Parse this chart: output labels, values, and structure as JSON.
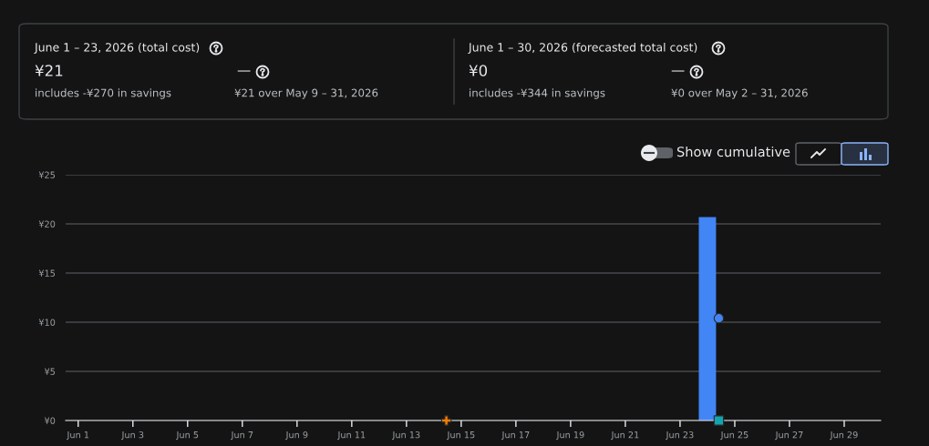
{
  "chart_data": {
    "type": "bar",
    "annotations": [
      "June 1 – 23, 2026 (total cost)",
      "¥21",
      "—",
      "includes -¥270 in savings",
      "¥21 over May 9 – 31, 2026",
      "June 1 – 30, 2026 (forecasted total cost)",
      "¥0",
      "—",
      "includes -¥344 in savings",
      "¥0 over May 2 – 31, 2026",
      "Show cumulative"
    ],
    "series": [
      {
        "color": "#4285f4",
        "x": [
          "2026-06-24"
        ],
        "values": [
          20.7
        ]
      },
      {
        "type": "scatter",
        "marker": "circle",
        "color": "#4285f4",
        "x": [
          "2026-06-24T10:00"
        ],
        "values": [
          10.4
        ]
      },
      {
        "type": "scatter",
        "marker": "square",
        "color": "#12a4af",
        "x": [
          "2026-06-24T10:00"
        ],
        "values": [
          0
        ]
      },
      {
        "type": "scatter",
        "marker": "cross",
        "color": "#f57c00",
        "x": [
          "2026-06-14T11:00"
        ],
        "values": [
          0
        ]
      }
    ],
    "xlim": [
      "2026-05-31T13:00",
      "2026-06-30T08:00"
    ],
    "xticks": [
      {
        "value": "2026-06-01",
        "label": "Jun 1"
      },
      {
        "value": "2026-06-03",
        "label": "Jun 3"
      },
      {
        "value": "2026-06-05",
        "label": "Jun 5"
      },
      {
        "value": "2026-06-07",
        "label": "Jun 7"
      },
      {
        "value": "2026-06-09",
        "label": "Jun 9"
      },
      {
        "value": "2026-06-11",
        "label": "Jun 11"
      },
      {
        "value": "2026-06-13",
        "label": "Jun 13"
      },
      {
        "value": "2026-06-15",
        "label": "Jun 15"
      },
      {
        "value": "2026-06-17",
        "label": "Jun 17"
      },
      {
        "value": "2026-06-19",
        "label": "Jun 19"
      },
      {
        "value": "2026-06-21",
        "label": "Jun 21"
      },
      {
        "value": "2026-06-23",
        "label": "Jun 23"
      },
      {
        "value": "2026-06-25",
        "label": "Jun 25"
      },
      {
        "value": "2026-06-27",
        "label": "Jun 27"
      },
      {
        "value": "2026-06-29",
        "label": "Jun 29"
      }
    ],
    "ylim": [
      0,
      25
    ],
    "yticks": [
      {
        "value": 0,
        "label": "¥0"
      },
      {
        "value": 5,
        "label": "¥5"
      },
      {
        "value": 10,
        "label": "¥10"
      },
      {
        "value": 15,
        "label": "¥15"
      },
      {
        "value": 20,
        "label": "¥20"
      },
      {
        "value": 25,
        "label": "¥25"
      }
    ],
    "grid": "y",
    "legend": false
  }
}
